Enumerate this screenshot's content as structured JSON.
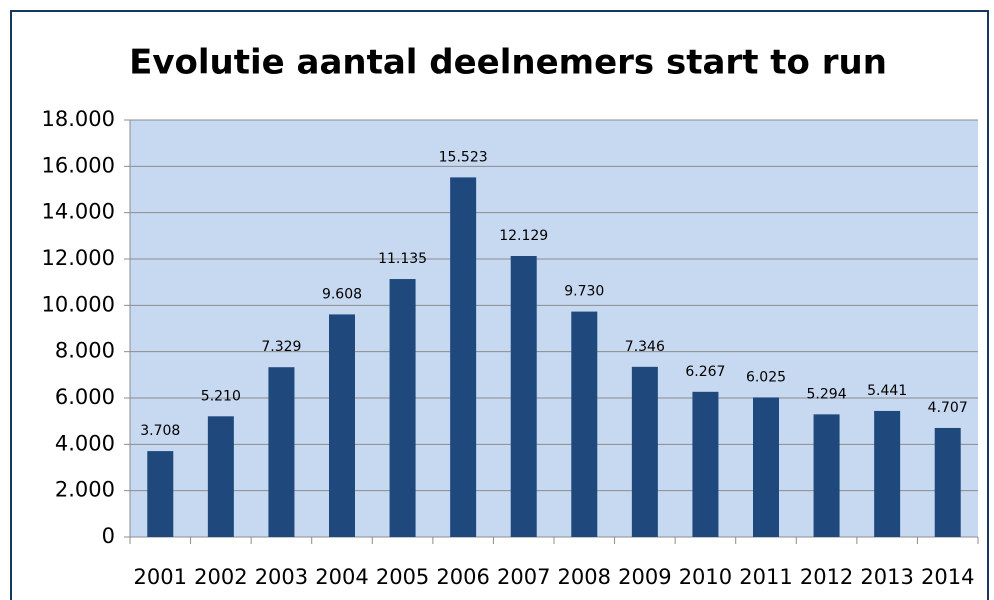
{
  "chart_data": {
    "type": "bar",
    "title": "Evolutie aantal deelnemers start to run",
    "categories": [
      "2001",
      "2002",
      "2003",
      "2004",
      "2005",
      "2006",
      "2007",
      "2008",
      "2009",
      "2010",
      "2011",
      "2012",
      "2013",
      "2014"
    ],
    "values": [
      3708,
      5210,
      7329,
      9608,
      11135,
      15523,
      12129,
      9730,
      7346,
      6267,
      6025,
      5294,
      5441,
      4707
    ],
    "value_labels": [
      "3.708",
      "5.210",
      "7.329",
      "9.608",
      "11.135",
      "15.523",
      "12.129",
      "9.730",
      "7.346",
      "6.267",
      "6.025",
      "5.294",
      "5.441",
      "4.707"
    ],
    "color": "#1f497d",
    "ylim": [
      0,
      18000
    ],
    "yticks": [
      0,
      {
        "value": 2000,
        "label": "2.000"
      },
      {
        "value": 4000,
        "label": "4.000"
      },
      {
        "value": 6000,
        "label": "6.000"
      },
      {
        "value": 8000,
        "label": "8.000"
      },
      {
        "value": 10000,
        "label": "10.000"
      },
      {
        "value": 12000,
        "label": "12.000"
      },
      {
        "value": 14000,
        "label": "14.000"
      },
      {
        "value": 16000,
        "label": "16.000"
      },
      {
        "value": 18000,
        "label": "18.000"
      }
    ],
    "grid": true
  }
}
